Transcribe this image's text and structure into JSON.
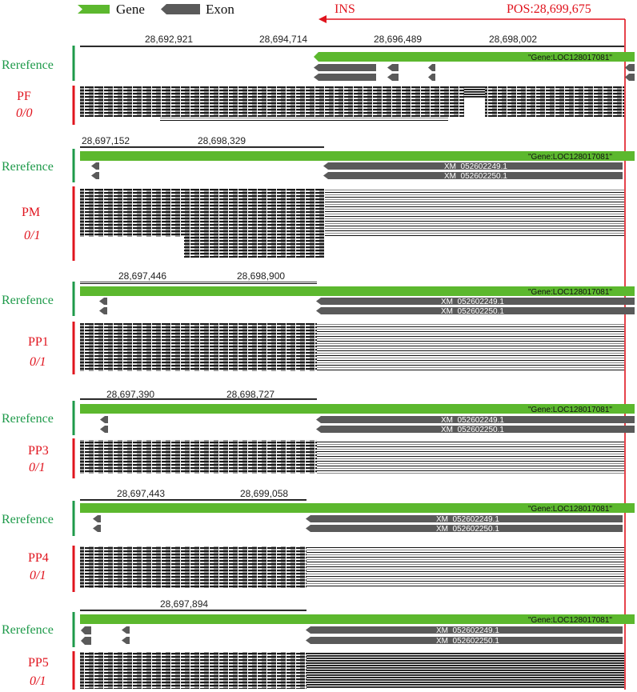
{
  "legend": {
    "gene_label": "Gene",
    "exon_label": "Exon"
  },
  "colors": {
    "gene": "#5cb82e",
    "exon": "#5a5a5a",
    "reference": "#1e9a4a",
    "sample": "#e0141e",
    "marker": "#e0141e",
    "reads": "#111111"
  },
  "marker": {
    "ins_label": "INS",
    "pos_label": "POS:28,699,675"
  },
  "panels": [
    {
      "ref_label": "Rerefence",
      "sample_name": "PF",
      "genotype": "0/0",
      "ticks": [
        "28,692,921",
        "28,694,714",
        "28,696,489",
        "28,698,002"
      ],
      "gene_label": "\"Gene:LOC128017081\"",
      "transcripts": [
        "",
        ""
      ]
    },
    {
      "ref_label": "Rerefence",
      "sample_name": "PM",
      "genotype": "0/1",
      "ticks": [
        "28,697,152",
        "28,698,329"
      ],
      "gene_label": "\"Gene:LOC128017081\"",
      "transcripts": [
        "XM_052602249.1",
        "XM_052602250.1"
      ]
    },
    {
      "ref_label": "Rerefence",
      "sample_name": "PP1",
      "genotype": "0/1",
      "ticks": [
        "28,697,446",
        "28,698,900"
      ],
      "gene_label": "\"Gene:LOC128017081\"",
      "transcripts": [
        "XM_052602249.1",
        "XM_052602250.1"
      ]
    },
    {
      "ref_label": "Rerefence",
      "sample_name": "PP3",
      "genotype": "0/1",
      "ticks": [
        "28,697,390",
        "28,698,727"
      ],
      "gene_label": "\"Gene:LOC128017081\"",
      "transcripts": [
        "XM_052602249.1",
        "XM_052602250.1"
      ]
    },
    {
      "ref_label": "Rerefence",
      "sample_name": "PP4",
      "genotype": "0/1",
      "ticks": [
        "28,697,443",
        "28,699,058"
      ],
      "gene_label": "\"Gene:LOC128017081\"",
      "transcripts": [
        "XM_052602249.1",
        "XM_052602250.1"
      ]
    },
    {
      "ref_label": "Rerefence",
      "sample_name": "PP5",
      "genotype": "0/1",
      "ticks": [
        "28,697,894"
      ],
      "gene_label": "\"Gene:LOC128017081\"",
      "transcripts": [
        "XM_052602249.1",
        "XM_052602250.1"
      ]
    }
  ]
}
